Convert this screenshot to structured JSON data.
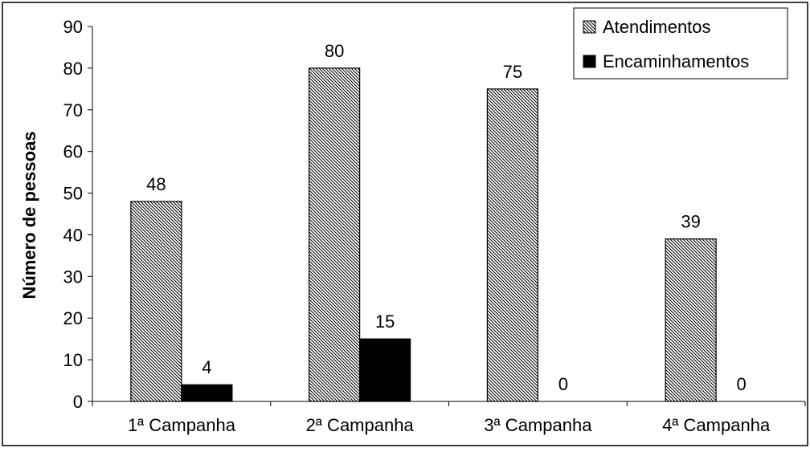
{
  "chart_data": {
    "type": "bar",
    "categories": [
      "1ª Campanha",
      "2ª Campanha",
      "3ª Campanha",
      "4ª Campanha"
    ],
    "series": [
      {
        "name": "Atendimentos",
        "values": [
          48,
          80,
          75,
          39
        ],
        "fill": "hatch"
      },
      {
        "name": "Encaminhamentos",
        "values": [
          4,
          15,
          0,
          0
        ],
        "fill": "#000000"
      }
    ],
    "xlabel": "",
    "ylabel": "Número de pessoas",
    "ylim": [
      0,
      90
    ],
    "yticks": [
      0,
      10,
      20,
      30,
      40,
      50,
      60,
      70,
      80,
      90
    ],
    "grid": false,
    "legend_position": "top-right",
    "data_labels": true
  },
  "colors": {
    "background": "#ffffff",
    "bar_outline": "#000000",
    "hatch_line": "#000000",
    "solid_bar": "#000000"
  }
}
